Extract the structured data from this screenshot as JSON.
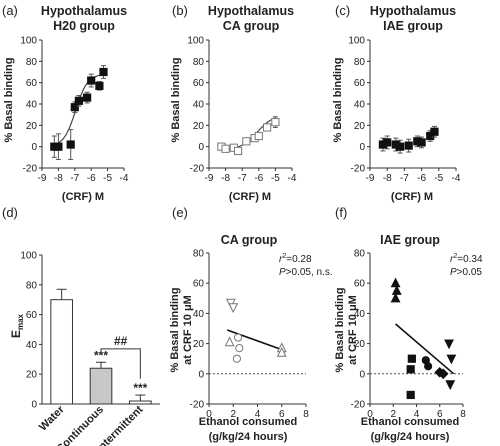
{
  "chart_data": [
    {
      "panel": "(a)",
      "type": "scatter",
      "title": "Hypothalamus",
      "subtitle": "H20 group",
      "xlabel": "(CRF) M",
      "ylabel": "% Basal binding",
      "xticks": [
        "-9",
        "-8",
        "-7",
        "-6",
        "-5",
        "-4"
      ],
      "yticks": [
        "-20",
        "0",
        "20",
        "40",
        "60",
        "80",
        "100"
      ],
      "xlim": [
        -9,
        -4
      ],
      "ylim": [
        -20,
        100
      ],
      "marker": "filled-square",
      "fit_curve": "sigmoid",
      "points": [
        {
          "x": -8.25,
          "y": 0,
          "err": 10
        },
        {
          "x": -8.0,
          "y": 0,
          "err": 12
        },
        {
          "x": -7.25,
          "y": 2,
          "err": 14
        },
        {
          "x": -7.0,
          "y": 37,
          "err": 5
        },
        {
          "x": -6.75,
          "y": 43,
          "err": 5
        },
        {
          "x": -6.25,
          "y": 46,
          "err": 5
        },
        {
          "x": -6.0,
          "y": 62,
          "err": 6
        },
        {
          "x": -5.5,
          "y": 57,
          "err": 4
        },
        {
          "x": -5.25,
          "y": 70,
          "err": 6
        }
      ]
    },
    {
      "panel": "(b)",
      "type": "scatter",
      "title": "Hypothalamus",
      "subtitle": "CA group",
      "xlabel": "(CRF) M",
      "ylabel": "% Basal binding",
      "xticks": [
        "-9",
        "-8",
        "-7",
        "-6",
        "-5",
        "-4"
      ],
      "yticks": [
        "-20",
        "0",
        "20",
        "40",
        "60",
        "80",
        "100"
      ],
      "xlim": [
        -9,
        -4
      ],
      "ylim": [
        -20,
        100
      ],
      "marker": "open-square",
      "fit_curve": "sigmoid",
      "points": [
        {
          "x": -8.25,
          "y": 0,
          "err": 3
        },
        {
          "x": -8.0,
          "y": -2,
          "err": 3
        },
        {
          "x": -7.5,
          "y": -1,
          "err": 3
        },
        {
          "x": -7.25,
          "y": -4,
          "err": 3
        },
        {
          "x": -6.75,
          "y": 5,
          "err": 3
        },
        {
          "x": -6.25,
          "y": 8,
          "err": 3
        },
        {
          "x": -6.0,
          "y": 10,
          "err": 3
        },
        {
          "x": -5.5,
          "y": 18,
          "err": 3
        },
        {
          "x": -5.0,
          "y": 23,
          "err": 5
        }
      ]
    },
    {
      "panel": "(c)",
      "type": "scatter",
      "title": "Hypothalamus",
      "subtitle": "IAE group",
      "xlabel": "(CRF) M",
      "ylabel": "% Basal binding",
      "xticks": [
        "-9",
        "-8",
        "-7",
        "-6",
        "-5",
        "-4"
      ],
      "yticks": [
        "-20",
        "0",
        "20",
        "40",
        "60",
        "80",
        "100"
      ],
      "xlim": [
        -9,
        -4
      ],
      "ylim": [
        -20,
        100
      ],
      "marker": "filled-square",
      "fit_curve": "none",
      "points": [
        {
          "x": -8.25,
          "y": 2,
          "err": 6
        },
        {
          "x": -8.0,
          "y": 4,
          "err": 6
        },
        {
          "x": -7.5,
          "y": 2,
          "err": 6
        },
        {
          "x": -7.25,
          "y": 0,
          "err": 6
        },
        {
          "x": -6.75,
          "y": 1,
          "err": 6
        },
        {
          "x": -6.25,
          "y": 5,
          "err": 5
        },
        {
          "x": -6.0,
          "y": 4,
          "err": 5
        },
        {
          "x": -5.5,
          "y": 10,
          "err": 5
        },
        {
          "x": -5.25,
          "y": 14,
          "err": 5
        }
      ]
    },
    {
      "panel": "(d)",
      "type": "bar",
      "ylabel": "E",
      "ylabel_sub": "max",
      "categories": [
        "Water",
        "Continuous",
        "Intermittent"
      ],
      "values": [
        70,
        24,
        2
      ],
      "errors": [
        7,
        4,
        4
      ],
      "colors": [
        "#ffffff",
        "#c8c8c8",
        "#ffffff"
      ],
      "yticks": [
        "0",
        "20",
        "40",
        "60",
        "80",
        "100"
      ],
      "ylim": [
        0,
        100
      ],
      "annotations": [
        {
          "category": "Continuous",
          "text": "***"
        },
        {
          "category": "Intermittent",
          "text": "***"
        }
      ],
      "bracket_text": "##"
    },
    {
      "panel": "(e)",
      "type": "scatter",
      "title": "CA group",
      "xlabel": "Ethanol consumed",
      "xlabel2": "(g/kg/24 hours)",
      "ylabel": "% Basal binding",
      "ylabel2": "at CRF 10 μM",
      "stat_r2": "=0.28",
      "stat_p": ">0.05, n.s.",
      "xticks": [
        "0",
        "2",
        "4",
        "6",
        "8"
      ],
      "yticks": [
        "-20",
        "0",
        "20",
        "40",
        "60",
        "80"
      ],
      "xlim": [
        0,
        8
      ],
      "ylim": [
        -20,
        80
      ],
      "regression": {
        "x1": 1.5,
        "y1": 29,
        "x2": 6,
        "y2": 16
      },
      "series": [
        {
          "marker": "open-triangle-down",
          "points": [
            {
              "x": 1.8,
              "y": 47
            },
            {
              "x": 2.0,
              "y": 44
            }
          ]
        },
        {
          "marker": "open-triangle-up",
          "points": [
            {
              "x": 1.7,
              "y": 21
            },
            {
              "x": 6.0,
              "y": 17
            },
            {
              "x": 6.0,
              "y": 14
            }
          ]
        },
        {
          "marker": "open-circle",
          "points": [
            {
              "x": 2.4,
              "y": 24
            },
            {
              "x": 2.5,
              "y": 17
            },
            {
              "x": 2.3,
              "y": 10
            }
          ]
        }
      ]
    },
    {
      "panel": "(f)",
      "type": "scatter",
      "title": "IAE group",
      "xlabel": "Ethanol consumed",
      "xlabel2": "(g/kg/24 hours)",
      "ylabel": "% Basal binding",
      "ylabel2": "at CRF 10 μM",
      "stat_r2": "=0.34",
      "stat_p": ">0.05",
      "xticks": [
        "0",
        "2",
        "4",
        "6",
        "8"
      ],
      "yticks": [
        "-20",
        "0",
        "20",
        "40",
        "60",
        "80"
      ],
      "xlim": [
        0,
        8
      ],
      "ylim": [
        -20,
        80
      ],
      "regression": {
        "x1": 2.2,
        "y1": 33,
        "x2": 7.2,
        "y2": 0
      },
      "series": [
        {
          "marker": "filled-triangle-up",
          "points": [
            {
              "x": 2.2,
              "y": 60
            },
            {
              "x": 2.3,
              "y": 55
            },
            {
              "x": 2.2,
              "y": 50
            }
          ]
        },
        {
          "marker": "filled-square",
          "points": [
            {
              "x": 3.6,
              "y": 10
            },
            {
              "x": 3.5,
              "y": 3
            },
            {
              "x": 3.5,
              "y": -14
            }
          ]
        },
        {
          "marker": "filled-circle",
          "points": [
            {
              "x": 4.8,
              "y": 9
            },
            {
              "x": 5.0,
              "y": 5
            }
          ]
        },
        {
          "marker": "filled-diamond",
          "points": [
            {
              "x": 6.0,
              "y": 1
            },
            {
              "x": 6.3,
              "y": 0
            }
          ]
        },
        {
          "marker": "filled-triangle-down",
          "points": [
            {
              "x": 6.8,
              "y": 20
            },
            {
              "x": 7.0,
              "y": 10
            },
            {
              "x": 6.9,
              "y": -7
            }
          ]
        }
      ]
    }
  ]
}
